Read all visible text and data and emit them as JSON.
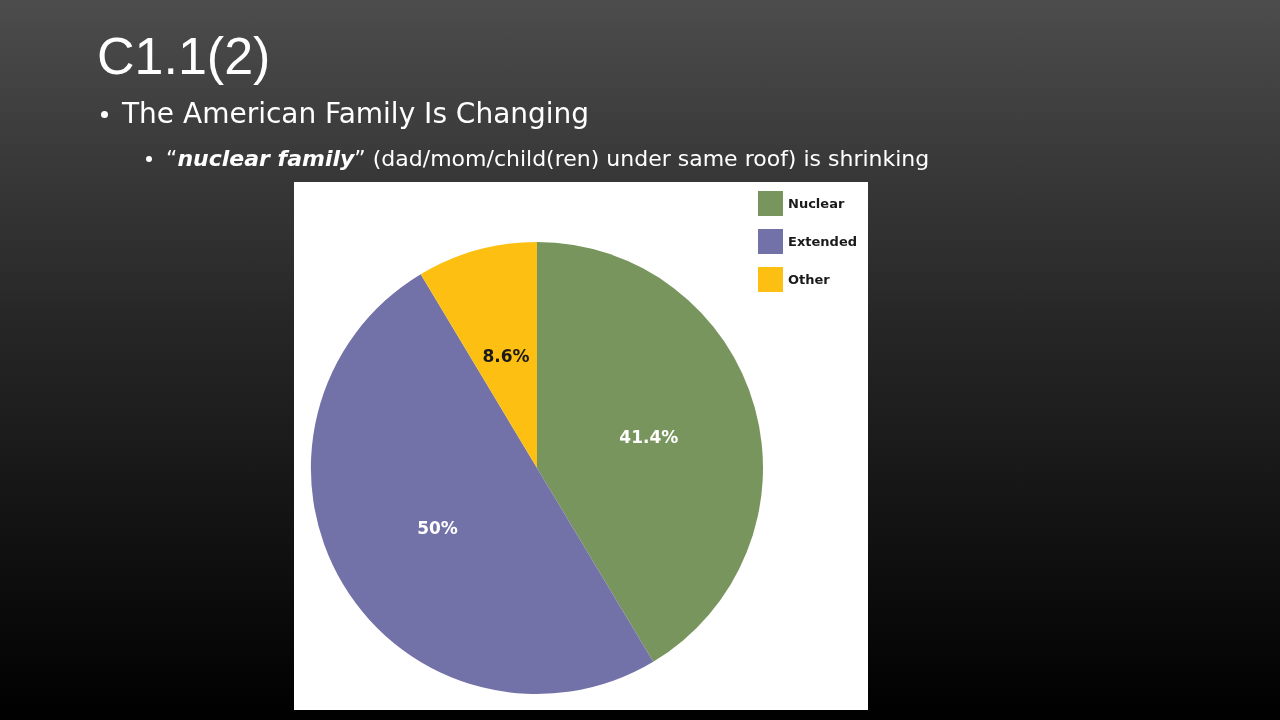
{
  "chart_data": {
    "type": "pie",
    "title": "C1.1(2)",
    "subtitle": "The American Family Is Changing",
    "annotations": [
      "“nuclear family” (dad/mom/child(ren) under same roof) is shrinking"
    ],
    "categories": [
      "Nuclear",
      "Extended",
      "Other"
    ],
    "values": [
      41.4,
      50,
      8.6
    ],
    "colors": [
      "#79955e",
      "#7372a8",
      "#fcbf12"
    ],
    "value_labels": [
      "41.4%",
      "50%",
      "8.6%"
    ],
    "legend": "top right"
  }
}
